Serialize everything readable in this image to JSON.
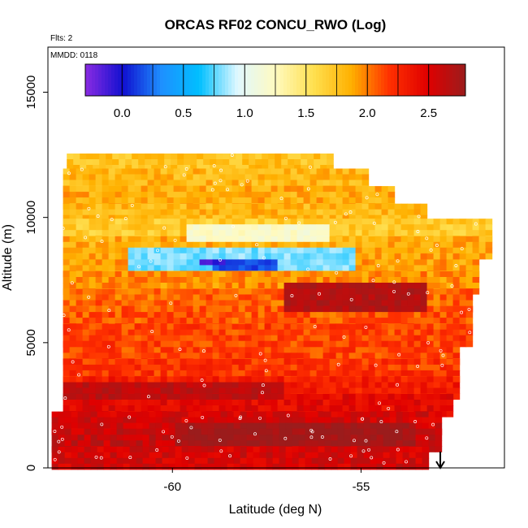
{
  "chart_data": {
    "type": "heatmap",
    "title": "ORCAS RF02 CONCU_RWO (Log)",
    "top_left_note": "Flts: 2",
    "inset_note": "MMDD: 0118",
    "xlabel": "Latitude (deg N)",
    "ylabel": "Altitude (m)",
    "xlim": [
      -63.3,
      -51.2
    ],
    "ylim": [
      0,
      16800
    ],
    "x_ticks": [
      -60,
      -55
    ],
    "x_tick_labels": [
      "-60",
      "-55"
    ],
    "y_ticks": [
      0,
      5000,
      10000,
      15000
    ],
    "y_tick_labels": [
      "0",
      "5000",
      "10000",
      "15000"
    ],
    "colorbar": {
      "range": [
        -0.3,
        2.8
      ],
      "ticks": [
        0.0,
        0.5,
        1.0,
        1.5,
        2.0,
        2.5
      ],
      "tick_labels": [
        "0.0",
        "0.5",
        "1.0",
        "1.5",
        "2.0",
        "2.5"
      ],
      "colors": [
        "#8a2be2",
        "#1010d0",
        "#1e90ff",
        "#00bfff",
        "#e0f8ff",
        "#fffac0",
        "#ffe050",
        "#ffb000",
        "#ff3000",
        "#e00000",
        "#9b1c1c"
      ]
    },
    "arrow_marker_lat": -52.9,
    "layers": [
      {
        "alt": 12200,
        "lat_min": -62.8,
        "lat_max": -55.8,
        "value": 1.75
      },
      {
        "alt": 11600,
        "lat_min": -62.9,
        "lat_max": -54.9,
        "value": 1.8
      },
      {
        "alt": 10900,
        "lat_min": -62.9,
        "lat_max": -54.2,
        "value": 1.85
      },
      {
        "alt": 10200,
        "lat_min": -62.9,
        "lat_max": -53.4,
        "value": 1.8
      },
      {
        "alt": 9600,
        "lat_min": -62.9,
        "lat_max": -51.7,
        "value": 1.7
      },
      {
        "alt": 8900,
        "lat_min": -62.9,
        "lat_max": -51.7,
        "value": 1.85
      },
      {
        "alt": 8200,
        "lat_min": -62.9,
        "lat_max": -51.9,
        "value": 1.9
      },
      {
        "alt": 7500,
        "lat_min": -62.9,
        "lat_max": -51.9,
        "value": 1.95
      },
      {
        "alt": 6800,
        "lat_min": -62.9,
        "lat_max": -52.1,
        "value": 2.05
      },
      {
        "alt": 6100,
        "lat_min": -62.9,
        "lat_max": -52.1,
        "value": 2.1
      },
      {
        "alt": 5400,
        "lat_min": -62.9,
        "lat_max": -52.1,
        "value": 2.15
      },
      {
        "alt": 4700,
        "lat_min": -62.9,
        "lat_max": -52.4,
        "value": 2.15
      },
      {
        "alt": 4000,
        "lat_min": -62.9,
        "lat_max": -52.4,
        "value": 2.2
      },
      {
        "alt": 3300,
        "lat_min": -62.9,
        "lat_max": -52.4,
        "value": 2.3
      },
      {
        "alt": 2600,
        "lat_min": -62.9,
        "lat_max": -52.6,
        "value": 2.45
      },
      {
        "alt": 1900,
        "lat_min": -63.2,
        "lat_max": -52.9,
        "value": 2.55
      },
      {
        "alt": 1200,
        "lat_min": -63.2,
        "lat_max": -52.9,
        "value": 2.6
      },
      {
        "alt": 500,
        "lat_min": -63.2,
        "lat_max": -53.3,
        "value": 2.55
      }
    ],
    "features": [
      {
        "lat_min": -59.6,
        "lat_max": -55.9,
        "alt_min": 9000,
        "alt_max": 9800,
        "value": 1.2
      },
      {
        "lat_min": -61.1,
        "lat_max": -55.2,
        "alt_min": 7800,
        "alt_max": 8700,
        "value": 0.8
      },
      {
        "lat_min": -59.0,
        "lat_max": -57.3,
        "alt_min": 7800,
        "alt_max": 8300,
        "value": 0.15
      },
      {
        "lat_min": -59.2,
        "lat_max": -58.6,
        "alt_min": 8000,
        "alt_max": 8400,
        "value": -0.1
      },
      {
        "lat_min": -57.0,
        "lat_max": -53.3,
        "alt_min": 6300,
        "alt_max": 7300,
        "value": 2.7
      },
      {
        "lat_min": -63.0,
        "lat_max": -57.0,
        "alt_min": 2700,
        "alt_max": 3400,
        "value": 2.65
      },
      {
        "lat_min": -60.0,
        "lat_max": -53.5,
        "alt_min": 800,
        "alt_max": 1700,
        "value": 2.78
      }
    ]
  }
}
